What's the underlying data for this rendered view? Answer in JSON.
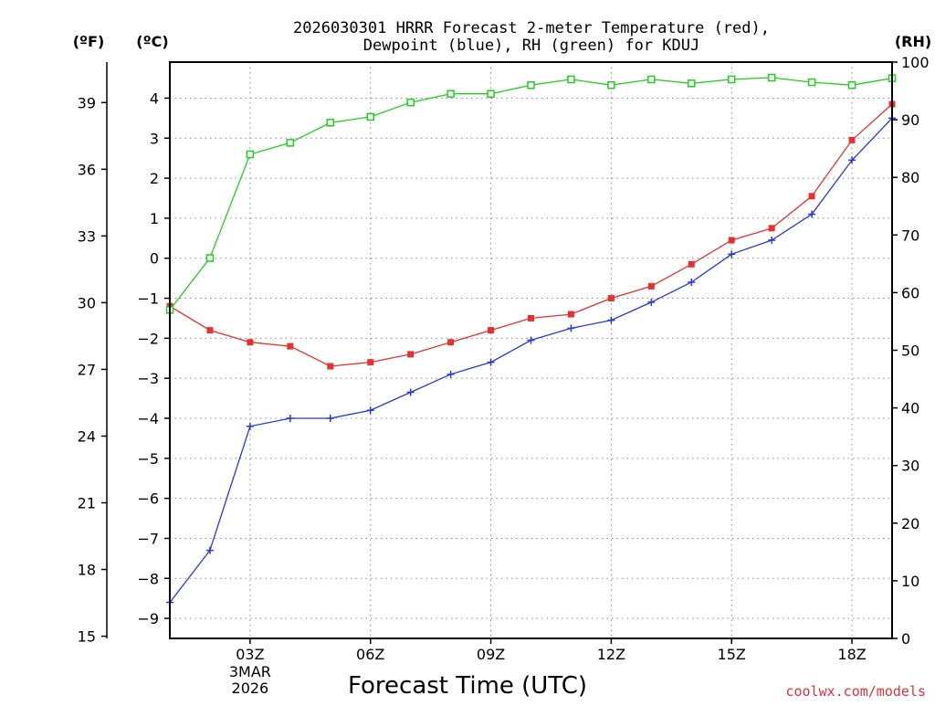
{
  "chart_data": {
    "type": "line",
    "title_line1": "2026030301 HRRR Forecast 2-meter Temperature (red),",
    "title_line2": "Dewpoint (blue), RH (green) for KDUJ",
    "xlabel": "Forecast Time (UTC)",
    "credit": "coolwx.com/models",
    "x": [
      1,
      2,
      3,
      4,
      5,
      6,
      7,
      8,
      9,
      10,
      11,
      12,
      13,
      14,
      15,
      16,
      17,
      18,
      19
    ],
    "xlim": [
      1,
      19
    ],
    "x_ticks": [
      {
        "x": 3,
        "label": "03Z"
      },
      {
        "x": 6,
        "label": "06Z"
      },
      {
        "x": 9,
        "label": "09Z"
      },
      {
        "x": 12,
        "label": "12Z"
      },
      {
        "x": 15,
        "label": "15Z"
      },
      {
        "x": 18,
        "label": "18Z"
      }
    ],
    "date_label": [
      "3MAR",
      "2026"
    ],
    "axes": {
      "celsius": {
        "label": "(ºC)",
        "ylim": [
          -9.5,
          4.9
        ],
        "ticks": [
          4,
          3,
          2,
          1,
          0,
          -1,
          -2,
          -3,
          -4,
          -5,
          -6,
          -7,
          -8,
          -9
        ],
        "tick_labels": [
          "4",
          "3",
          "2",
          "1",
          "0",
          "−1",
          "−2",
          "−3",
          "−4",
          "−5",
          "−6",
          "−7",
          "−8",
          "−9"
        ]
      },
      "fahrenheit": {
        "label": "(ºF)",
        "ticks": [
          39,
          36,
          33,
          30,
          27,
          24,
          21,
          18,
          15
        ],
        "tick_labels": [
          "39",
          "36",
          "33",
          "30",
          "27",
          "24",
          "21",
          "18",
          "15"
        ]
      },
      "rh": {
        "label": "(RH)",
        "ylim": [
          0,
          100
        ],
        "ticks": [
          100,
          90,
          80,
          70,
          60,
          50,
          40,
          30,
          20,
          10,
          0
        ],
        "tick_labels": [
          "100",
          "90",
          "80",
          "70",
          "60",
          "50",
          "40",
          "30",
          "20",
          "10",
          "0"
        ]
      }
    },
    "series": [
      {
        "name": "Temperature",
        "axis": "celsius",
        "color": "#e83030",
        "marker": "filled-square",
        "values": [
          -1.2,
          -1.8,
          -2.1,
          -2.2,
          -2.7,
          -2.6,
          -2.4,
          -2.1,
          -1.8,
          -1.5,
          -1.4,
          -1.0,
          -0.7,
          -0.15,
          0.45,
          0.75,
          1.55,
          2.95,
          3.85
        ]
      },
      {
        "name": "Dewpoint",
        "axis": "celsius",
        "color": "#2838e0",
        "marker": "plus",
        "values": [
          -8.6,
          -7.3,
          -4.2,
          -4.0,
          -4.0,
          -3.8,
          -3.35,
          -2.9,
          -2.6,
          -2.05,
          -1.75,
          -1.55,
          -1.1,
          -0.6,
          0.1,
          0.45,
          1.1,
          2.45,
          3.5
        ]
      },
      {
        "name": "RH",
        "axis": "rh",
        "color": "#20d020",
        "marker": "open-square",
        "values": [
          57,
          66,
          84,
          86,
          89.5,
          90.5,
          93,
          94.5,
          94.5,
          96,
          97,
          96,
          97,
          96.3,
          97,
          97.3,
          96.5,
          96,
          97.2
        ]
      }
    ]
  }
}
